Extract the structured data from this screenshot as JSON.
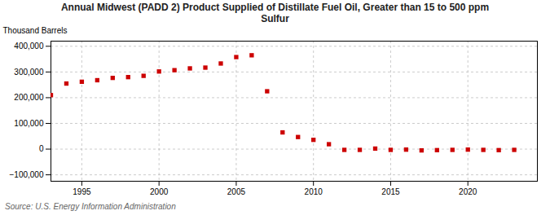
{
  "chart_data": {
    "type": "scatter",
    "title": "Annual Midwest (PADD 2) Product Supplied of Distillate Fuel Oil, Greater than 15 to 500 ppm\nSulfur",
    "ylabel": "Thousand Barrels",
    "source": "Source: U.S. Energy Information Administration",
    "color": "#cc0000",
    "marker": "square",
    "grid": true,
    "xlim": [
      1993.0,
      2024.5
    ],
    "ylim": [
      -125000,
      420000
    ],
    "xticks": [
      1995,
      2000,
      2005,
      2010,
      2015,
      2020
    ],
    "yticks": [
      {
        "value": -100000,
        "label": "−100,000"
      },
      0,
      {
        "value": 100000,
        "label": "100,000"
      },
      {
        "value": 200000,
        "label": "200,000"
      },
      {
        "value": 300000,
        "label": "300,000"
      },
      {
        "value": 400000,
        "label": "400,000"
      }
    ],
    "x": [
      1993,
      1994,
      1995,
      1996,
      1997,
      1998,
      1999,
      2000,
      2001,
      2002,
      2003,
      2004,
      2005,
      2006,
      2007,
      2008,
      2009,
      2010,
      2011,
      2012,
      2013,
      2014,
      2015,
      2016,
      2017,
      2018,
      2019,
      2020,
      2021,
      2022,
      2023
    ],
    "values": [
      210000,
      255000,
      262000,
      268000,
      277000,
      280000,
      285000,
      302000,
      307000,
      314000,
      317000,
      333000,
      358000,
      365000,
      225000,
      65000,
      47000,
      36000,
      19000,
      -3000,
      -3000,
      2000,
      -3000,
      -2000,
      -5000,
      -4000,
      -3000,
      -2000,
      -3000,
      -4000,
      -3000
    ]
  }
}
